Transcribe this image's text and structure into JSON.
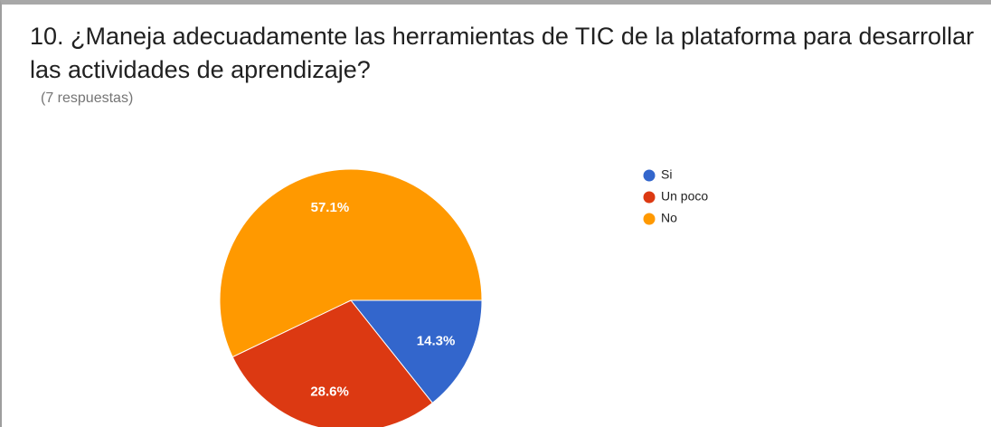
{
  "chart_data": {
    "type": "pie",
    "title": "10. ¿Maneja adecuadamente las herramientas de TIC de la plataforma para desarrollar las actividades de aprendizaje?",
    "subtitle": "(7 respuestas)",
    "categories": [
      "Si",
      "Un poco",
      "No"
    ],
    "values": [
      14.3,
      28.6,
      57.1
    ],
    "value_labels": [
      "14.3%",
      "28.6%",
      "57.1%"
    ],
    "colors": [
      "#3366cc",
      "#dc3912",
      "#ff9900"
    ],
    "legend": "right"
  }
}
